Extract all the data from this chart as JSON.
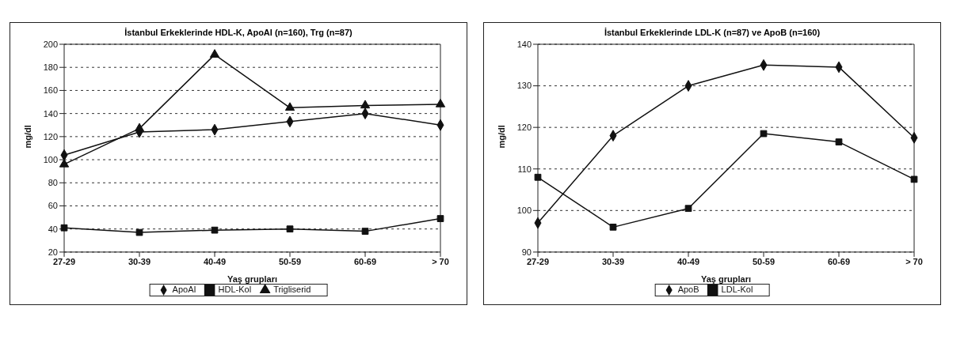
{
  "chart_data": [
    {
      "type": "line",
      "title": "İstanbul Erkeklerinde HDL-K, ApoAI (n=160), Trg (n=87)",
      "xlabel": "Yaş grupları",
      "ylabel": "mg/dl",
      "categories": [
        "27-29",
        "30-39",
        "40-49",
        "50-59",
        "60-69",
        "> 70"
      ],
      "ylim": [
        20,
        200
      ],
      "yticks": [
        20,
        40,
        60,
        80,
        100,
        120,
        140,
        160,
        180,
        200
      ],
      "grid": "y",
      "legend": "bottom",
      "line_style": "solid",
      "series": [
        {
          "name": "ApoAI",
          "color": "#111111",
          "marker": "diamond",
          "values": [
            104,
            124,
            126,
            133,
            140,
            130
          ]
        },
        {
          "name": "HDL-Kol",
          "color": "#111111",
          "marker": "square",
          "values": [
            41,
            37,
            39,
            40,
            38,
            49
          ]
        },
        {
          "name": "Trigliserid",
          "color": "#111111",
          "marker": "triangle",
          "values": [
            96,
            127,
            191,
            145,
            147,
            148
          ]
        }
      ]
    },
    {
      "type": "line",
      "title": "İstanbul Erkeklerinde LDL-K (n=87) ve ApoB (n=160)",
      "xlabel": "Yaş grupları",
      "ylabel": "mg/dl",
      "categories": [
        "27-29",
        "30-39",
        "40-49",
        "50-59",
        "60-69",
        "> 70"
      ],
      "ylim": [
        90,
        140
      ],
      "yticks": [
        90,
        100,
        110,
        120,
        130,
        140
      ],
      "grid": "y",
      "legend": "bottom",
      "line_style": "solid",
      "series": [
        {
          "name": "ApoB",
          "color": "#111111",
          "marker": "diamond",
          "values": [
            97,
            118,
            130,
            135,
            134.5,
            117.5
          ]
        },
        {
          "name": "LDL-Kol",
          "color": "#111111",
          "marker": "square",
          "values": [
            108,
            96,
            100.5,
            118.5,
            116.5,
            107.5
          ]
        }
      ]
    }
  ]
}
